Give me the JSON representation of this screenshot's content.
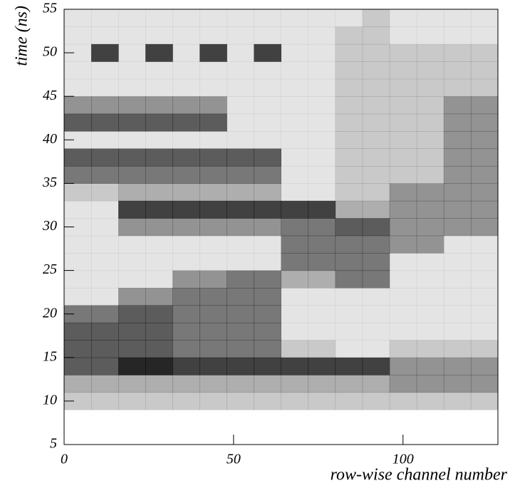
{
  "chart_data": {
    "type": "heatmap2d",
    "xlabel": "row-wise channel number",
    "ylabel": "time (ns)",
    "xlim": [
      0,
      128
    ],
    "ylim": [
      5,
      55
    ],
    "xticks": [
      0,
      50,
      100
    ],
    "yticks": [
      5,
      10,
      15,
      20,
      25,
      30,
      35,
      40,
      45,
      50,
      55
    ],
    "x_bins": [
      0,
      8,
      16,
      24,
      32,
      40,
      48,
      56,
      64,
      72,
      80,
      88,
      96,
      104,
      112,
      120,
      128
    ],
    "y_bins": [
      5,
      7,
      9,
      11,
      13,
      15,
      17,
      19,
      21,
      23,
      25,
      27,
      29,
      31,
      33,
      35,
      37,
      39,
      41,
      43,
      45,
      47,
      49,
      51,
      53,
      55
    ],
    "color": "#000000",
    "counts": [
      [
        0,
        0,
        0,
        0,
        0,
        0,
        0,
        0,
        0,
        0,
        0,
        0,
        0,
        0,
        0,
        0
      ],
      [
        0,
        0,
        0,
        0,
        0,
        0,
        0,
        0,
        0,
        0,
        0,
        0,
        0,
        0,
        0,
        0
      ],
      [
        2,
        2,
        2,
        2,
        2,
        2,
        2,
        2,
        2,
        2,
        2,
        2,
        2,
        2,
        2,
        2
      ],
      [
        3,
        3,
        3,
        3,
        3,
        3,
        3,
        3,
        3,
        3,
        3,
        3,
        4,
        4,
        4,
        4
      ],
      [
        6,
        6,
        8,
        8,
        7,
        7,
        7,
        7,
        7,
        7,
        7,
        7,
        4,
        4,
        4,
        4
      ],
      [
        6,
        6,
        6,
        6,
        5,
        5,
        5,
        5,
        2,
        2,
        1,
        1,
        2,
        2,
        2,
        2
      ],
      [
        6,
        6,
        6,
        6,
        5,
        5,
        5,
        5,
        1,
        1,
        1,
        1,
        1,
        1,
        1,
        1
      ],
      [
        5,
        5,
        6,
        6,
        5,
        5,
        5,
        5,
        1,
        1,
        1,
        1,
        1,
        1,
        1,
        1
      ],
      [
        1,
        1,
        4,
        4,
        5,
        5,
        5,
        5,
        1,
        1,
        1,
        1,
        1,
        1,
        1,
        1
      ],
      [
        1,
        1,
        1,
        1,
        4,
        4,
        5,
        5,
        3,
        3,
        5,
        5,
        1,
        1,
        1,
        1
      ],
      [
        1,
        1,
        1,
        1,
        1,
        1,
        1,
        1,
        5,
        5,
        5,
        5,
        1,
        1,
        1,
        1
      ],
      [
        1,
        1,
        1,
        1,
        1,
        1,
        1,
        1,
        5,
        5,
        5,
        5,
        4,
        4,
        1,
        1
      ],
      [
        1,
        1,
        4,
        4,
        4,
        4,
        4,
        4,
        5,
        5,
        6,
        6,
        4,
        4,
        4,
        4
      ],
      [
        1,
        1,
        7,
        7,
        7,
        7,
        7,
        7,
        7,
        7,
        3,
        3,
        4,
        4,
        4,
        4
      ],
      [
        2,
        2,
        3,
        3,
        3,
        3,
        3,
        3,
        1,
        1,
        2,
        2,
        4,
        4,
        4,
        4
      ],
      [
        5,
        5,
        5,
        5,
        5,
        5,
        5,
        5,
        1,
        1,
        2,
        2,
        2,
        2,
        4,
        4
      ],
      [
        6,
        6,
        6,
        6,
        6,
        6,
        6,
        6,
        1,
        1,
        2,
        2,
        2,
        2,
        4,
        4
      ],
      [
        1,
        1,
        1,
        1,
        1,
        1,
        1,
        1,
        1,
        1,
        2,
        2,
        2,
        2,
        4,
        4
      ],
      [
        6,
        6,
        6,
        6,
        6,
        6,
        1,
        1,
        1,
        1,
        2,
        2,
        2,
        2,
        4,
        4
      ],
      [
        4,
        4,
        4,
        4,
        4,
        4,
        1,
        1,
        1,
        1,
        2,
        2,
        2,
        2,
        4,
        4
      ],
      [
        1,
        1,
        1,
        1,
        1,
        1,
        1,
        1,
        1,
        1,
        2,
        2,
        2,
        2,
        2,
        2
      ],
      [
        1,
        1,
        1,
        1,
        1,
        1,
        1,
        1,
        1,
        1,
        2,
        2,
        2,
        2,
        2,
        2
      ],
      [
        1,
        7,
        1,
        7,
        1,
        7,
        1,
        7,
        1,
        1,
        2,
        2,
        2,
        2,
        2,
        2
      ],
      [
        1,
        1,
        1,
        1,
        1,
        1,
        1,
        1,
        1,
        1,
        2,
        2,
        1,
        1,
        1,
        1
      ],
      [
        1,
        1,
        1,
        1,
        1,
        1,
        1,
        1,
        1,
        1,
        1,
        2,
        1,
        1,
        1,
        1
      ]
    ]
  }
}
